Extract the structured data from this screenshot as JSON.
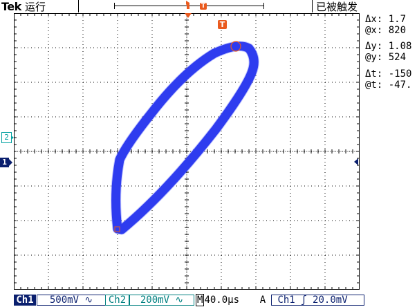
{
  "topbar": {
    "brand": "Tek",
    "run_status": "运行",
    "trigger_state": "已被触发",
    "trigger_marker_label": "T"
  },
  "graticule": {
    "divisions_x": 10,
    "divisions_y": 8,
    "grid_color": "#000000",
    "trace_color": "#1f2ee6",
    "cursor_color": "#ea5a1e"
  },
  "markers": {
    "ch1": "1",
    "ch2": "2",
    "trigger": "T"
  },
  "readouts": {
    "dx_label": "Δx:",
    "dx_value": "1.7",
    "atx_label": "@x:",
    "atx_value": "820",
    "dy_label": "Δy:",
    "dy_value": "1.08",
    "aty_label": "@y:",
    "aty_value": "524",
    "dt_label": "Δt:",
    "dt_value": "-150",
    "att_label": "@t:",
    "att_value": "-47."
  },
  "bottombar": {
    "ch1_tag": "Ch1",
    "ch1_scale": "500mV ∿",
    "ch2_tag": "Ch2",
    "ch2_scale": "200mV ∿",
    "timebase_m": "M",
    "timebase_value": "40.0µs",
    "trigger_mode": "A",
    "trigger_source": "Ch1",
    "trigger_slope": "ʃ",
    "trigger_level": "20.0mV"
  }
}
